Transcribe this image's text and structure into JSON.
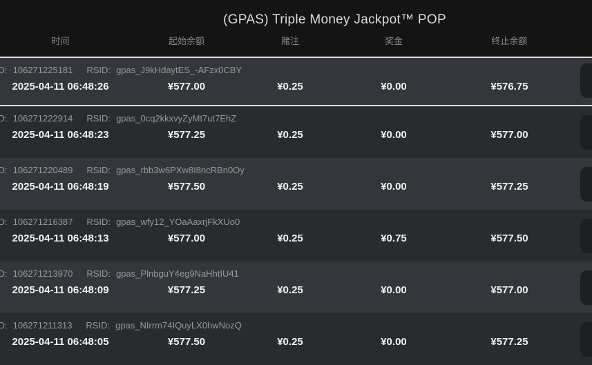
{
  "title": "(GPAS) Triple Money Jackpot™ POP",
  "columns": [
    "时间",
    "起始余额",
    "赌注",
    "奖金",
    "终止余额"
  ],
  "labels": {
    "id": "ID:",
    "rsid": "RSID:"
  },
  "rows": [
    {
      "id": "106271225181",
      "rsid": "gpas_J9kHdaytES_-AFzx0CBY",
      "time": "2025-04-11 06:48:26",
      "start": "¥577.00",
      "bet": "¥0.25",
      "prize": "¥0.00",
      "end": "¥576.75"
    },
    {
      "id": "106271222914",
      "rsid": "gpas_0cq2kkxvyZyMt7ut7EhZ",
      "time": "2025-04-11 06:48:23",
      "start": "¥577.25",
      "bet": "¥0.25",
      "prize": "¥0.00",
      "end": "¥577.00"
    },
    {
      "id": "106271220489",
      "rsid": "gpas_rbb3w6PXw8I8ncRBn0Oy",
      "time": "2025-04-11 06:48:19",
      "start": "¥577.50",
      "bet": "¥0.25",
      "prize": "¥0.00",
      "end": "¥577.25"
    },
    {
      "id": "106271216387",
      "rsid": "gpas_wfy12_YOaAaxrjFkXUo0",
      "time": "2025-04-11 06:48:13",
      "start": "¥577.00",
      "bet": "¥0.25",
      "prize": "¥0.75",
      "end": "¥577.50"
    },
    {
      "id": "106271213970",
      "rsid": "gpas_PlnbguY4eg9NaHhtIU41",
      "time": "2025-04-11 06:48:09",
      "start": "¥577.25",
      "bet": "¥0.25",
      "prize": "¥0.00",
      "end": "¥577.00"
    },
    {
      "id": "106271211313",
      "rsid": "gpas_NIrrm74IQuyLX0hwNozQ",
      "time": "2025-04-11 06:48:05",
      "start": "¥577.50",
      "bet": "¥0.25",
      "prize": "¥0.00",
      "end": "¥577.25"
    }
  ],
  "colors": {
    "header_bg": "#141414",
    "row_light": "#33363a",
    "row_dark": "#292c2f",
    "separator": "#e3e3e0",
    "text_primary": "#f2f2f2",
    "text_secondary": "#97999c",
    "column_header_text": "#8a8a8a",
    "row_button_bg": "#1d1f21"
  }
}
